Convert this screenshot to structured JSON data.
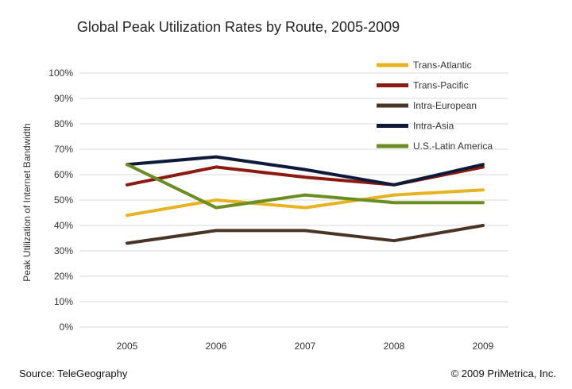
{
  "chart_data": {
    "type": "line",
    "title": "Global Peak Utilization Rates by Route, 2005-2009",
    "xlabel": "",
    "ylabel": "Peak Utilization of Internet Bandwidth",
    "categories": [
      "2005",
      "2006",
      "2007",
      "2008",
      "2009"
    ],
    "y_ticks": [
      "0%",
      "10%",
      "20%",
      "30%",
      "40%",
      "50%",
      "60%",
      "70%",
      "80%",
      "90%",
      "100%"
    ],
    "ylim": [
      0,
      100
    ],
    "grid": true,
    "legend_position": "top-right",
    "series": [
      {
        "name": "Trans-Atlantic",
        "color": "#e6b422",
        "values": [
          44,
          50,
          47,
          52,
          54
        ]
      },
      {
        "name": "Trans-Pacific",
        "color": "#8b1a10",
        "values": [
          56,
          63,
          59,
          56,
          63
        ]
      },
      {
        "name": "Intra-European",
        "color": "#4a3426",
        "values": [
          33,
          38,
          38,
          34,
          40
        ]
      },
      {
        "name": "Intra-Asia",
        "color": "#0e1a3a",
        "values": [
          64,
          67,
          62,
          56,
          64
        ]
      },
      {
        "name": "U.S.-Latin America",
        "color": "#6b8e23",
        "values": [
          64,
          47,
          52,
          49,
          49
        ]
      }
    ]
  },
  "footer": {
    "source": "Source: TeleGeography",
    "copyright": "© 2009 PriMetrica, Inc."
  }
}
